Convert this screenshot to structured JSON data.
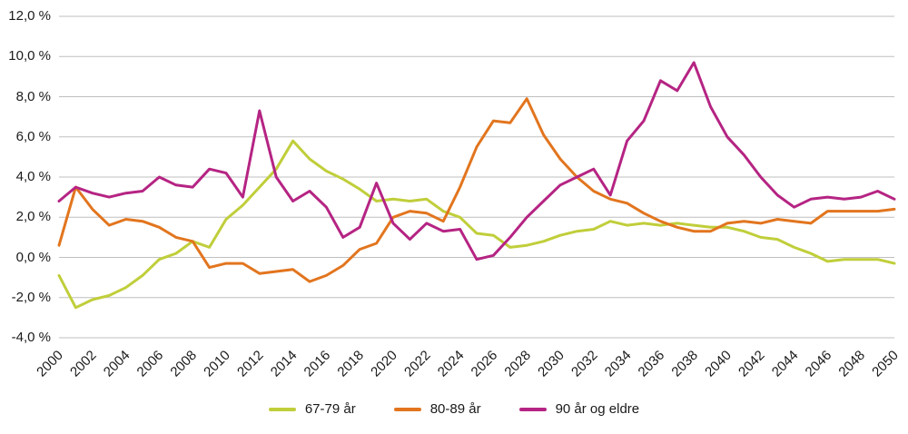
{
  "chart_data": {
    "type": "line",
    "title": "",
    "xlabel": "",
    "ylabel": "",
    "ylim": [
      -4,
      12
    ],
    "grid": "horizontal",
    "legend_position": "bottom",
    "grid_color": "#bfbfbf",
    "text_color": "#1a1a1a",
    "years": [
      2000,
      2001,
      2002,
      2003,
      2004,
      2005,
      2006,
      2007,
      2008,
      2009,
      2010,
      2011,
      2012,
      2013,
      2014,
      2015,
      2016,
      2017,
      2018,
      2019,
      2020,
      2021,
      2022,
      2023,
      2024,
      2025,
      2026,
      2027,
      2028,
      2029,
      2030,
      2031,
      2032,
      2033,
      2034,
      2035,
      2036,
      2037,
      2038,
      2039,
      2040,
      2041,
      2042,
      2043,
      2044,
      2045,
      2046,
      2047,
      2048,
      2049,
      2050
    ],
    "x_tick_labels": [
      "2000",
      "2002",
      "2004",
      "2006",
      "2008",
      "2010",
      "2012",
      "2014",
      "2016",
      "2018",
      "2020",
      "2022",
      "2024",
      "2026",
      "2028",
      "2030",
      "2032",
      "2034",
      "2036",
      "2038",
      "2040",
      "2042",
      "2044",
      "2046",
      "2048",
      "2050"
    ],
    "y_ticks": [
      {
        "value": 12,
        "label": "12,0 %"
      },
      {
        "value": 10,
        "label": "10,0 %"
      },
      {
        "value": 8,
        "label": "8,0 %"
      },
      {
        "value": 6,
        "label": "6,0 %"
      },
      {
        "value": 4,
        "label": "4,0 %"
      },
      {
        "value": 2,
        "label": "2,0 %"
      },
      {
        "value": 0,
        "label": "0,0 %"
      },
      {
        "value": -2,
        "label": "-2,0 %"
      },
      {
        "value": -4,
        "label": "-4,0 %"
      }
    ],
    "series": [
      {
        "name": "67-79 år",
        "color": "#c0ce3a",
        "values": [
          -0.9,
          -2.5,
          -2.1,
          -1.9,
          -1.5,
          -0.9,
          -0.1,
          0.2,
          0.8,
          0.5,
          1.9,
          2.6,
          3.5,
          4.4,
          5.8,
          4.9,
          4.3,
          3.9,
          3.4,
          2.8,
          2.9,
          2.8,
          2.9,
          2.3,
          2.0,
          1.2,
          1.1,
          0.5,
          0.6,
          0.8,
          1.1,
          1.3,
          1.4,
          1.8,
          1.6,
          1.7,
          1.6,
          1.7,
          1.6,
          1.5,
          1.5,
          1.3,
          1.0,
          0.9,
          0.5,
          0.2,
          -0.2,
          -0.1,
          -0.1,
          -0.1,
          -0.3
        ]
      },
      {
        "name": "80-89 år",
        "color": "#e2751e",
        "values": [
          0.6,
          3.5,
          2.4,
          1.6,
          1.9,
          1.8,
          1.5,
          1.0,
          0.8,
          -0.5,
          -0.3,
          -0.3,
          -0.8,
          -0.7,
          -0.6,
          -1.2,
          -0.9,
          -0.4,
          0.4,
          0.7,
          2.0,
          2.3,
          2.2,
          1.8,
          3.5,
          5.5,
          6.8,
          6.7,
          7.9,
          6.1,
          4.9,
          4.0,
          3.3,
          2.9,
          2.7,
          2.2,
          1.8,
          1.5,
          1.3,
          1.3,
          1.7,
          1.8,
          1.7,
          1.9,
          1.8,
          1.7,
          2.3,
          2.3,
          2.3,
          2.3,
          2.4
        ]
      },
      {
        "name": "90 år og eldre",
        "color": "#b52483",
        "values": [
          2.8,
          3.5,
          3.2,
          3.0,
          3.2,
          3.3,
          4.0,
          3.6,
          3.5,
          4.4,
          4.2,
          3.0,
          7.3,
          4.0,
          2.8,
          3.3,
          2.5,
          1.0,
          1.5,
          3.7,
          1.7,
          0.9,
          1.7,
          1.3,
          1.4,
          -0.1,
          0.1,
          1.0,
          2.0,
          2.8,
          3.6,
          4.0,
          4.4,
          3.1,
          5.8,
          6.8,
          8.8,
          8.3,
          9.7,
          7.5,
          6.0,
          5.1,
          4.0,
          3.1,
          2.5,
          2.9,
          3.0,
          2.9,
          3.0,
          3.3,
          2.9
        ]
      }
    ]
  }
}
